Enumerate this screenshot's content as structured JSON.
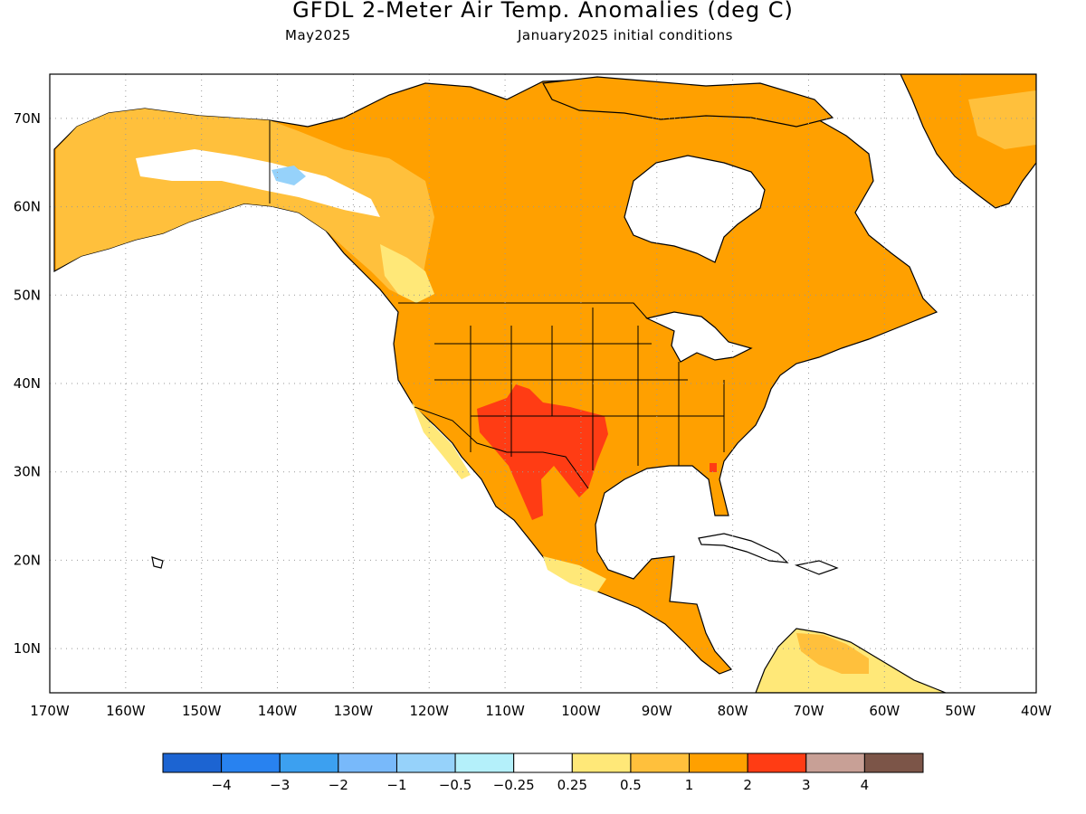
{
  "title": "GFDL 2-Meter Air Temp. Anomalies (deg C)",
  "subtitle_left": "May2025",
  "subtitle_right": "January2025 initial conditions",
  "axes": {
    "lon_range": [
      -170,
      -40
    ],
    "lat_range": [
      5,
      75
    ],
    "x_ticks": [
      "170W",
      "160W",
      "150W",
      "140W",
      "130W",
      "120W",
      "110W",
      "100W",
      "90W",
      "80W",
      "70W",
      "60W",
      "50W",
      "40W"
    ],
    "y_ticks": [
      "10N",
      "20N",
      "30N",
      "40N",
      "50N",
      "60N",
      "70N"
    ],
    "grid": "dotted"
  },
  "colorbar": {
    "colors": [
      "#1c64d2",
      "#2882f0",
      "#3ca0f0",
      "#78b9fa",
      "#96d2fa",
      "#b4f0fa",
      "#ffffff",
      "#ffe878",
      "#ffc03c",
      "#ffa000",
      "#ff3c14",
      "#c8a096",
      "#7c5548"
    ],
    "labels": [
      "−4",
      "−3",
      "−2",
      "−1",
      "−0.5",
      "−0.25",
      "0.25",
      "0.5",
      "1",
      "2",
      "3",
      "4"
    ]
  },
  "map": {
    "ocean_color": "#ffffff",
    "coast_color": "#000000",
    "regions": [
      {
        "name": "north-america-land",
        "anomaly_class": "1 to 2",
        "color": "#ffa000"
      },
      {
        "name": "alaska",
        "anomaly_class": "0.5 to 1",
        "color": "#ffc03c"
      },
      {
        "name": "alaska-interior",
        "anomaly_class": "-0.25 to 0.25",
        "color": "#ffffff"
      },
      {
        "name": "yukon-cold-spot",
        "anomaly_class": "-1 to -0.5",
        "color": "#96d2fa"
      },
      {
        "name": "southwest-us-mexico",
        "anomaly_class": "2 to 3",
        "color": "#ff3c14"
      },
      {
        "name": "greenland",
        "anomaly_class": "1 to 2",
        "color": "#ffa000"
      },
      {
        "name": "south-america-north",
        "anomaly_class": "0.25 to 0.5",
        "color": "#ffe878"
      }
    ]
  }
}
